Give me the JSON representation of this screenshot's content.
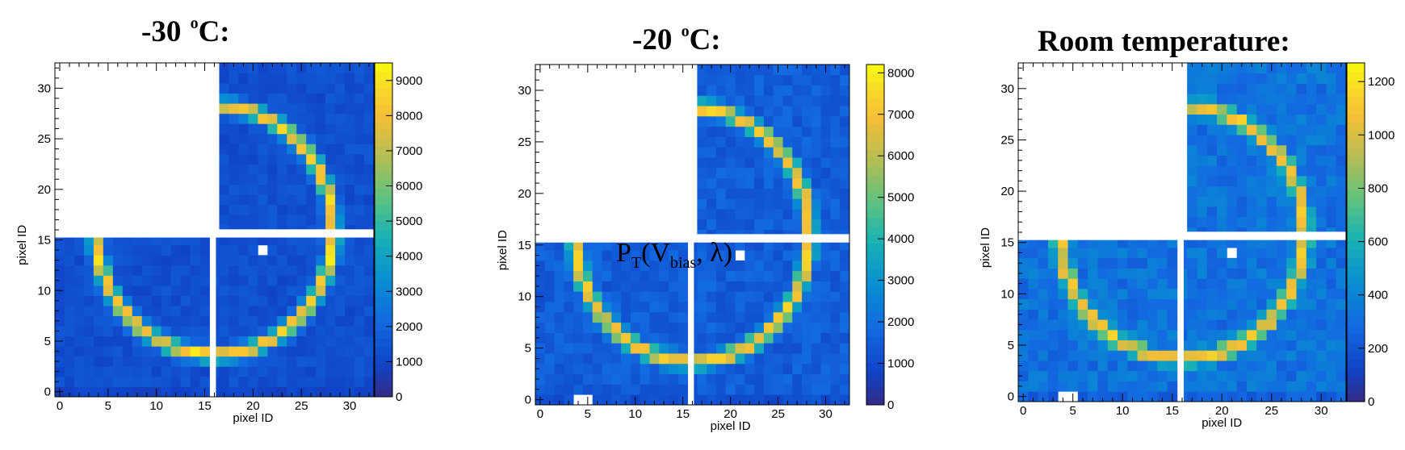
{
  "chart_data": [
    {
      "type": "heatmap",
      "title_main": "-30",
      "title_sup": "o",
      "title_tail": "C:",
      "xlabel": "pixel ID",
      "ylabel": "pixel ID",
      "xlim": [
        -0.5,
        32.5
      ],
      "ylim": [
        -0.5,
        32.5
      ],
      "x_ticks": [
        0,
        5,
        10,
        15,
        20,
        25,
        30
      ],
      "y_ticks": [
        0,
        5,
        10,
        15,
        20,
        25,
        30
      ],
      "colorbar": {
        "min": 0,
        "max": 9500,
        "ticks": [
          0,
          1000,
          2000,
          3000,
          4000,
          5000,
          6000,
          7000,
          8000,
          9000
        ]
      },
      "ring": {
        "center_x": 16.5,
        "center_y": 16.5,
        "radius": 12.3,
        "peak": 9200
      },
      "background_level": 1300,
      "empty_quadrant": "top-left",
      "missing_pixels": [
        [
          21,
          14
        ]
      ]
    },
    {
      "type": "heatmap",
      "title_main": "-20",
      "title_sup": "o",
      "title_tail": "C:",
      "xlabel": "pixel ID",
      "ylabel": "pixel ID",
      "xlim": [
        -0.5,
        32.5
      ],
      "ylim": [
        -0.5,
        32.5
      ],
      "x_ticks": [
        0,
        5,
        10,
        15,
        20,
        25,
        30
      ],
      "y_ticks": [
        0,
        5,
        10,
        15,
        20,
        25,
        30
      ],
      "colorbar": {
        "min": 0,
        "max": 8200,
        "ticks": [
          0,
          1000,
          2000,
          3000,
          4000,
          5000,
          6000,
          7000,
          8000
        ]
      },
      "ring": {
        "center_x": 16.5,
        "center_y": 16.5,
        "radius": 12.3,
        "peak": 7900
      },
      "background_level": 1500,
      "empty_quadrant": "top-left",
      "missing_pixels": [
        [
          21,
          14
        ],
        [
          4,
          0
        ],
        [
          5,
          0
        ]
      ],
      "annotation": {
        "main": "P",
        "sub1": "T",
        "mid": "(V",
        "sub2": "bias",
        "tail": ", λ)"
      }
    },
    {
      "type": "heatmap",
      "title_main": "Room temperature:",
      "title_sup": "",
      "title_tail": "",
      "xlabel": "pixel ID",
      "ylabel": "pixel ID",
      "xlim": [
        -0.5,
        32.5
      ],
      "ylim": [
        -0.5,
        32.5
      ],
      "x_ticks": [
        0,
        5,
        10,
        15,
        20,
        25,
        30
      ],
      "y_ticks": [
        0,
        5,
        10,
        15,
        20,
        25,
        30
      ],
      "colorbar": {
        "min": 0,
        "max": 1270,
        "ticks": [
          0,
          200,
          400,
          600,
          800,
          1000,
          1200
        ]
      },
      "ring": {
        "center_x": 16.5,
        "center_y": 16.5,
        "radius": 12.3,
        "peak": 1180
      },
      "background_level": 320,
      "empty_quadrant": "top-left",
      "missing_pixels": [
        [
          21,
          14
        ],
        [
          4,
          0
        ],
        [
          5,
          0
        ]
      ]
    }
  ],
  "colors": {
    "low": "#352a87",
    "mid_low": "#0f5cdd",
    "mid": "#1ab2c9",
    "mid_high": "#6fc577",
    "high": "#f9c937",
    "top": "#f9fb0e"
  }
}
